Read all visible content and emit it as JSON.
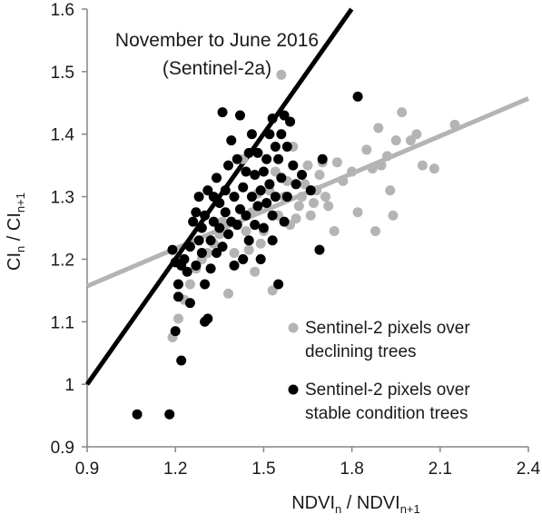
{
  "chart_data": {
    "type": "scatter",
    "title": "",
    "annotation": [
      "November to June 2016",
      "(Sentinel-2a)"
    ],
    "xlabel": {
      "main": "NDVI",
      "sub_n": "n",
      "sep": " / NDVI",
      "sub_n1": "n+1"
    },
    "ylabel": {
      "main": "CI",
      "sub_n": "n",
      "sep": " / CI",
      "sub_n1": "n+1"
    },
    "xlim": [
      0.9,
      2.4
    ],
    "ylim": [
      0.9,
      1.6
    ],
    "xticks": [
      "0.9",
      "1.2",
      "1.5",
      "1.8",
      "2.1",
      "2.4"
    ],
    "yticks": [
      "0.9",
      "1",
      "1.1",
      "1.2",
      "1.3",
      "1.4",
      "1.5",
      "1.6"
    ],
    "grid": false,
    "legend_position": "lower-right",
    "series": [
      {
        "name": "Sentinel-2 pixels over declining trees",
        "legend_lines": [
          "Sentinel-2 pixels over",
          "declining trees"
        ],
        "color": "#b4b4b4",
        "points": [
          [
            1.19,
            1.075
          ],
          [
            1.21,
            1.105
          ],
          [
            1.23,
            1.135
          ],
          [
            1.25,
            1.16
          ],
          [
            1.27,
            1.185
          ],
          [
            1.29,
            1.2
          ],
          [
            1.31,
            1.21
          ],
          [
            1.33,
            1.225
          ],
          [
            1.35,
            1.24
          ],
          [
            1.36,
            1.26
          ],
          [
            1.38,
            1.145
          ],
          [
            1.4,
            1.21
          ],
          [
            1.41,
            1.255
          ],
          [
            1.42,
            1.28
          ],
          [
            1.43,
            1.36
          ],
          [
            1.44,
            1.245
          ],
          [
            1.45,
            1.215
          ],
          [
            1.46,
            1.275
          ],
          [
            1.47,
            1.18
          ],
          [
            1.48,
            1.305
          ],
          [
            1.49,
            1.225
          ],
          [
            1.5,
            1.245
          ],
          [
            1.51,
            1.29
          ],
          [
            1.52,
            1.31
          ],
          [
            1.53,
            1.15
          ],
          [
            1.54,
            1.34
          ],
          [
            1.55,
            1.27
          ],
          [
            1.56,
            1.495
          ],
          [
            1.57,
            1.3
          ],
          [
            1.58,
            1.325
          ],
          [
            1.59,
            1.255
          ],
          [
            1.6,
            1.38
          ],
          [
            1.61,
            1.265
          ],
          [
            1.62,
            1.285
          ],
          [
            1.63,
            1.3
          ],
          [
            1.64,
            1.32
          ],
          [
            1.65,
            1.35
          ],
          [
            1.66,
            1.27
          ],
          [
            1.67,
            1.29
          ],
          [
            1.68,
            1.31
          ],
          [
            1.69,
            1.335
          ],
          [
            1.7,
            1.355
          ],
          [
            1.71,
            1.3
          ],
          [
            1.72,
            1.285
          ],
          [
            1.74,
            1.245
          ],
          [
            1.75,
            1.355
          ],
          [
            1.77,
            1.325
          ],
          [
            1.8,
            1.34
          ],
          [
            1.82,
            1.275
          ],
          [
            1.85,
            1.375
          ],
          [
            1.87,
            1.345
          ],
          [
            1.88,
            1.245
          ],
          [
            1.89,
            1.41
          ],
          [
            1.9,
            1.35
          ],
          [
            1.92,
            1.365
          ],
          [
            1.93,
            1.31
          ],
          [
            1.94,
            1.27
          ],
          [
            1.95,
            1.39
          ],
          [
            1.97,
            1.435
          ],
          [
            2.0,
            1.39
          ],
          [
            2.02,
            1.4
          ],
          [
            2.04,
            1.35
          ],
          [
            2.08,
            1.345
          ],
          [
            2.15,
            1.415
          ]
        ]
      },
      {
        "name": "Sentinel-2 pixels over stable condition trees",
        "legend_lines": [
          "Sentinel-2 pixels over",
          "stable condition trees"
        ],
        "color": "#000000",
        "points": [
          [
            1.07,
            0.952
          ],
          [
            1.18,
            0.952
          ],
          [
            1.2,
            1.085
          ],
          [
            1.21,
            1.16
          ],
          [
            1.22,
            1.038
          ],
          [
            1.2,
            1.195
          ],
          [
            1.19,
            1.215
          ],
          [
            1.21,
            1.14
          ],
          [
            1.22,
            1.19
          ],
          [
            1.23,
            1.2
          ],
          [
            1.24,
            1.18
          ],
          [
            1.25,
            1.13
          ],
          [
            1.25,
            1.22
          ],
          [
            1.26,
            1.26
          ],
          [
            1.27,
            1.19
          ],
          [
            1.27,
            1.275
          ],
          [
            1.28,
            1.23
          ],
          [
            1.28,
            1.3
          ],
          [
            1.29,
            1.21
          ],
          [
            1.29,
            1.25
          ],
          [
            1.3,
            1.1
          ],
          [
            1.3,
            1.16
          ],
          [
            1.3,
            1.27
          ],
          [
            1.31,
            1.105
          ],
          [
            1.31,
            1.31
          ],
          [
            1.32,
            1.185
          ],
          [
            1.32,
            1.23
          ],
          [
            1.33,
            1.26
          ],
          [
            1.33,
            1.3
          ],
          [
            1.34,
            1.21
          ],
          [
            1.34,
            1.33
          ],
          [
            1.35,
            1.25
          ],
          [
            1.35,
            1.29
          ],
          [
            1.36,
            1.435
          ],
          [
            1.36,
            1.22
          ],
          [
            1.37,
            1.275
          ],
          [
            1.37,
            1.31
          ],
          [
            1.38,
            1.24
          ],
          [
            1.38,
            1.35
          ],
          [
            1.39,
            1.39
          ],
          [
            1.39,
            1.26
          ],
          [
            1.4,
            1.3
          ],
          [
            1.4,
            1.19
          ],
          [
            1.41,
            1.36
          ],
          [
            1.41,
            1.255
          ],
          [
            1.42,
            1.43
          ],
          [
            1.42,
            1.28
          ],
          [
            1.43,
            1.315
          ],
          [
            1.43,
            1.2
          ],
          [
            1.44,
            1.34
          ],
          [
            1.44,
            1.27
          ],
          [
            1.45,
            1.37
          ],
          [
            1.45,
            1.23
          ],
          [
            1.46,
            1.3
          ],
          [
            1.46,
            1.4
          ],
          [
            1.47,
            1.335
          ],
          [
            1.47,
            1.255
          ],
          [
            1.48,
            1.285
          ],
          [
            1.48,
            1.37
          ],
          [
            1.49,
            1.31
          ],
          [
            1.49,
            1.2
          ],
          [
            1.5,
            1.34
          ],
          [
            1.5,
            1.25
          ],
          [
            1.51,
            1.36
          ],
          [
            1.51,
            1.29
          ],
          [
            1.52,
            1.4
          ],
          [
            1.52,
            1.32
          ],
          [
            1.53,
            1.425
          ],
          [
            1.53,
            1.27
          ],
          [
            1.54,
            1.38
          ],
          [
            1.54,
            1.3
          ],
          [
            1.55,
            1.36
          ],
          [
            1.55,
            1.16
          ],
          [
            1.56,
            1.4
          ],
          [
            1.56,
            1.33
          ],
          [
            1.57,
            1.43
          ],
          [
            1.57,
            1.26
          ],
          [
            1.58,
            1.38
          ],
          [
            1.58,
            1.3
          ],
          [
            1.59,
            1.42
          ],
          [
            1.6,
            1.35
          ],
          [
            1.61,
            1.32
          ],
          [
            1.63,
            1.335
          ],
          [
            1.66,
            1.31
          ],
          [
            1.69,
            1.215
          ],
          [
            1.7,
            1.36
          ],
          [
            1.82,
            1.46
          ],
          [
            1.53,
            1.23
          ]
        ]
      }
    ],
    "trendlines": [
      {
        "series": "Sentinel-2 pixels over declining trees",
        "color": "#b4b4b4",
        "x": [
          0.9,
          2.4
        ],
        "y": [
          1.157,
          1.457
        ]
      },
      {
        "series": "Sentinel-2 pixels over stable condition trees",
        "color": "#000000",
        "x": [
          0.9,
          1.799
        ],
        "y": [
          1.0,
          1.6
        ]
      }
    ]
  }
}
